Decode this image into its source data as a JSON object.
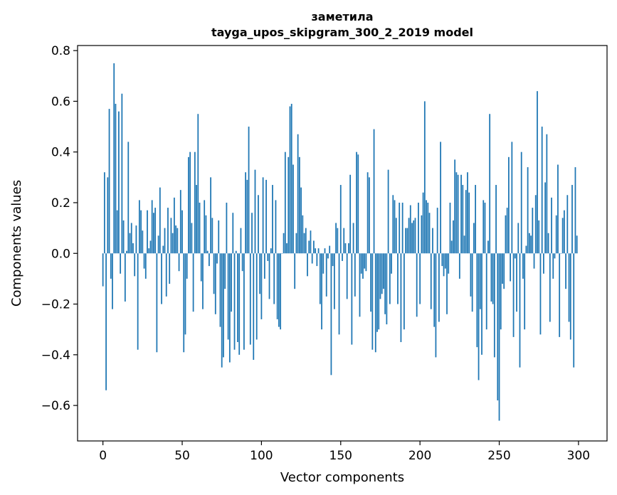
{
  "chart_data": {
    "type": "bar",
    "title": [
      "заметила",
      "tayga_upos_skipgram_300_2_2019 model"
    ],
    "xlabel": "Vector components",
    "ylabel": "Components values",
    "xlim": [
      -16,
      318
    ],
    "ylim": [
      -0.74,
      0.82
    ],
    "xticks": [
      0,
      50,
      100,
      150,
      200,
      250,
      300
    ],
    "yticks": [
      -0.6,
      -0.4,
      -0.2,
      0.0,
      0.2,
      0.4,
      0.6,
      0.8
    ],
    "ytick_labels": [
      "−0.6",
      "−0.4",
      "−0.2",
      "0.0",
      "0.2",
      "0.4",
      "0.6",
      "0.8"
    ],
    "grid": false,
    "bar_color": "#1f77b4",
    "x": "0..299 (component index)",
    "values": [
      -0.13,
      0.32,
      -0.54,
      0.3,
      0.57,
      -0.1,
      -0.22,
      0.75,
      0.59,
      0.17,
      0.56,
      -0.08,
      0.63,
      0.13,
      -0.19,
      0.01,
      0.44,
      0.08,
      0.12,
      0.04,
      -0.09,
      0.11,
      -0.38,
      0.21,
      0.17,
      0.09,
      -0.06,
      -0.1,
      0.17,
      0.02,
      0.05,
      0.21,
      0.16,
      0.18,
      -0.39,
      0.07,
      0.26,
      -0.2,
      0.03,
      0.1,
      -0.17,
      0.18,
      -0.12,
      0.14,
      0.08,
      0.22,
      0.11,
      0.1,
      -0.07,
      0.25,
      0.17,
      -0.39,
      -0.32,
      -0.1,
      0.38,
      0.4,
      0.12,
      -0.23,
      0.4,
      0.27,
      0.55,
      0.2,
      -0.11,
      -0.22,
      0.21,
      0.15,
      0.01,
      -0.05,
      0.3,
      0.14,
      -0.16,
      -0.24,
      -0.04,
      0.13,
      -0.29,
      -0.45,
      -0.41,
      -0.14,
      0.2,
      -0.34,
      -0.43,
      -0.23,
      0.16,
      -0.38,
      0.01,
      -0.35,
      -0.4,
      0.1,
      -0.07,
      -0.38,
      0.32,
      0.29,
      0.5,
      -0.36,
      0.16,
      -0.42,
      0.33,
      -0.34,
      0.23,
      -0.16,
      -0.26,
      0.3,
      -0.1,
      0.29,
      -0.03,
      -0.18,
      0.02,
      0.27,
      -0.2,
      0.21,
      -0.26,
      -0.29,
      -0.3,
      0.0,
      0.08,
      0.4,
      0.04,
      0.38,
      0.58,
      0.59,
      0.35,
      -0.14,
      0.08,
      0.47,
      0.38,
      0.26,
      0.15,
      0.08,
      0.1,
      -0.09,
      0.05,
      0.09,
      -0.04,
      0.05,
      0.02,
      -0.05,
      0.02,
      -0.2,
      -0.3,
      -0.08,
      0.02,
      -0.17,
      -0.02,
      0.03,
      -0.48,
      -0.05,
      -0.22,
      0.12,
      0.1,
      -0.32,
      0.27,
      -0.03,
      0.1,
      0.04,
      -0.18,
      0.04,
      0.31,
      -0.36,
      0.12,
      -0.17,
      0.4,
      0.39,
      -0.25,
      -0.08,
      -0.1,
      -0.06,
      -0.07,
      0.32,
      0.3,
      -0.23,
      -0.38,
      0.49,
      -0.39,
      -0.31,
      -0.3,
      -0.18,
      -0.16,
      -0.14,
      -0.24,
      -0.28,
      0.33,
      -0.2,
      -0.08,
      0.23,
      0.21,
      0.14,
      -0.2,
      0.2,
      -0.35,
      0.2,
      -0.3,
      0.1,
      0.1,
      0.14,
      0.19,
      0.12,
      0.13,
      0.14,
      -0.25,
      0.2,
      -0.2,
      0.15,
      0.24,
      0.6,
      0.21,
      0.2,
      0.16,
      -0.22,
      0.1,
      -0.29,
      -0.41,
      0.18,
      -0.27,
      0.44,
      -0.05,
      -0.09,
      -0.06,
      -0.24,
      -0.08,
      0.2,
      0.05,
      0.13,
      0.37,
      0.32,
      0.31,
      -0.1,
      0.31,
      0.27,
      0.07,
      0.25,
      0.32,
      0.24,
      -0.17,
      -0.23,
      0.12,
      0.27,
      -0.37,
      -0.5,
      -0.22,
      -0.4,
      0.21,
      0.2,
      -0.3,
      0.05,
      0.55,
      -0.19,
      -0.2,
      -0.41,
      0.27,
      -0.58,
      -0.66,
      -0.3,
      -0.12,
      -0.14,
      0.15,
      0.18,
      0.38,
      -0.11,
      0.44,
      -0.33,
      -0.02,
      -0.23,
      0.12,
      -0.45,
      0.4,
      -0.1,
      -0.3,
      0.03,
      0.34,
      0.08,
      0.07,
      0.18,
      -0.06,
      0.23,
      0.64,
      0.13,
      -0.32,
      0.5,
      -0.08,
      0.28,
      0.47,
      0.08,
      -0.27,
      0.22,
      -0.1,
      -0.02,
      0.15,
      0.35,
      -0.33,
      0.0,
      0.14,
      0.17,
      -0.14,
      0.23,
      -0.27,
      -0.34,
      0.27,
      -0.45,
      0.34,
      0.07
    ]
  }
}
